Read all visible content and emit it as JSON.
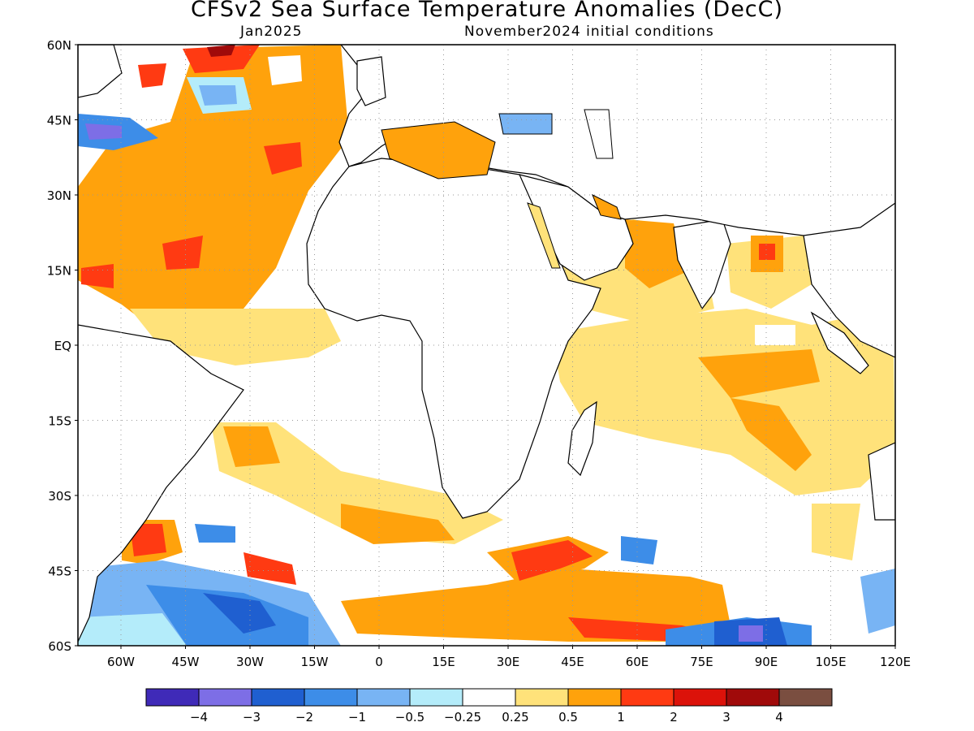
{
  "header": {
    "title": "CFSv2 Sea Surface Temperature Anomalies (DecC)",
    "valid_month": "Jan2025",
    "init_conditions": "November2024 initial conditions"
  },
  "map": {
    "lon_range": [
      -70,
      120
    ],
    "lat_range": [
      -60,
      60
    ],
    "lat_labels": [
      "60N",
      "45N",
      "30N",
      "15N",
      "EQ",
      "15S",
      "30S",
      "45S",
      "60S"
    ],
    "lon_labels": [
      "60W",
      "45W",
      "30W",
      "15W",
      "0",
      "15E",
      "30E",
      "45E",
      "60E",
      "75E",
      "90E",
      "105E",
      "120E"
    ],
    "grid": "dotted"
  },
  "colorbar": {
    "colors": [
      "#3f2ab8",
      "#7d6ee6",
      "#1f5fd0",
      "#3d8de8",
      "#78b4f4",
      "#b4ecfa",
      "#ffffff",
      "#ffe27a",
      "#ffa20c",
      "#ff3a12",
      "#dc120a",
      "#a00a0a",
      "#7a4e40"
    ],
    "labels": [
      "−4",
      "−3",
      "−2",
      "−1",
      "−0.5",
      "−0.25",
      "0.25",
      "0.5",
      "1",
      "2",
      "3",
      "4"
    ]
  }
}
